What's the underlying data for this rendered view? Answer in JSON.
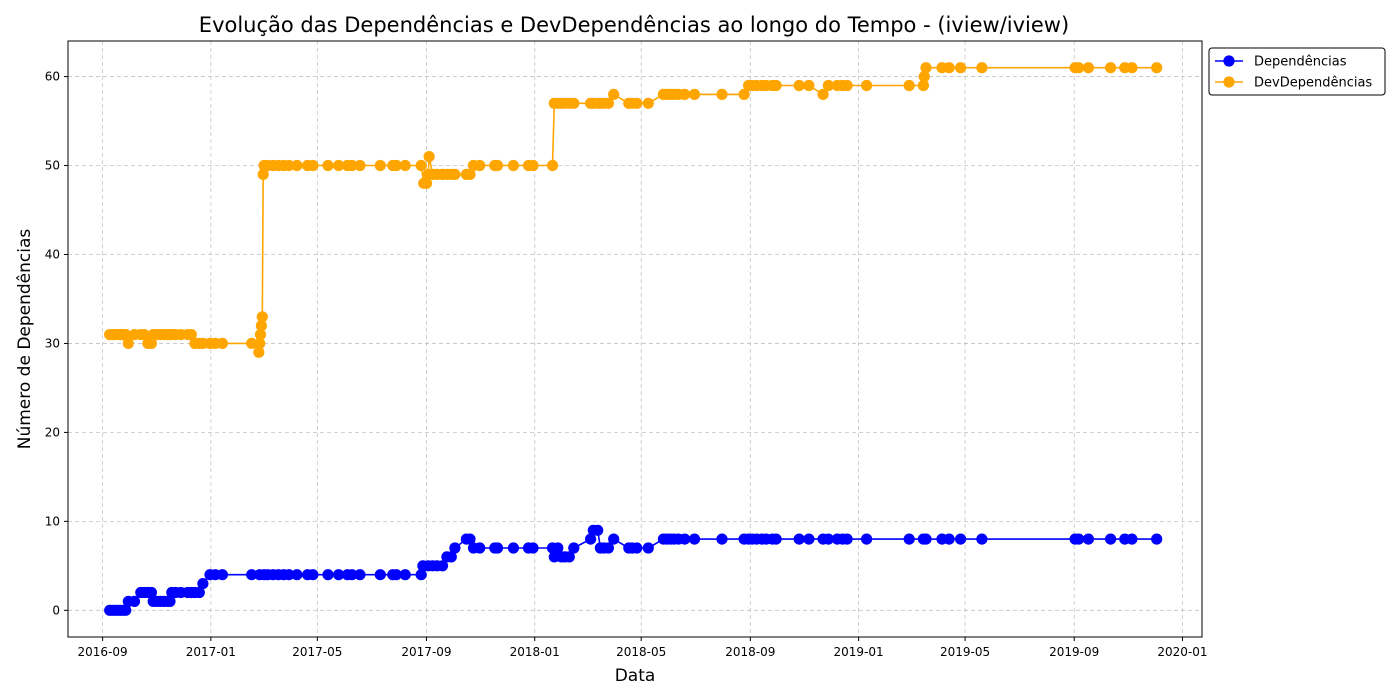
{
  "chart_data": {
    "type": "line",
    "title": "Evolução das Dependências e DevDependências ao longo do Tempo - (iview/iview)",
    "xlabel": "Data",
    "ylabel": "Número de Dependências",
    "x_ticks": [
      "2016-09",
      "2017-01",
      "2017-05",
      "2017-09",
      "2018-01",
      "2018-05",
      "2018-09",
      "2019-01",
      "2019-05",
      "2019-09",
      "2020-01"
    ],
    "y_ticks": [
      "0",
      "10",
      "20",
      "30",
      "40",
      "50",
      "60"
    ],
    "xlim": [
      "2016-07-24",
      "2020-01-23"
    ],
    "ylim": [
      -3,
      64
    ],
    "grid": true,
    "legend": "top-right, outside plot area",
    "marker": "circle",
    "series": [
      {
        "name": "Dependências",
        "color": "#0000ff",
        "points": [
          [
            "2016-09-09",
            0
          ],
          [
            "2016-09-12",
            0
          ],
          [
            "2016-09-15",
            0
          ],
          [
            "2016-09-18",
            0
          ],
          [
            "2016-09-21",
            0
          ],
          [
            "2016-09-24",
            0
          ],
          [
            "2016-09-27",
            0
          ],
          [
            "2016-09-30",
            1
          ],
          [
            "2016-10-07",
            1
          ],
          [
            "2016-10-14",
            2
          ],
          [
            "2016-10-18",
            2
          ],
          [
            "2016-10-22",
            2
          ],
          [
            "2016-10-26",
            2
          ],
          [
            "2016-10-28",
            1
          ],
          [
            "2016-11-01",
            1
          ],
          [
            "2016-11-05",
            1
          ],
          [
            "2016-11-09",
            1
          ],
          [
            "2016-11-13",
            1
          ],
          [
            "2016-11-16",
            1
          ],
          [
            "2016-11-18",
            2
          ],
          [
            "2016-11-22",
            2
          ],
          [
            "2016-11-28",
            2
          ],
          [
            "2016-12-06",
            2
          ],
          [
            "2016-12-10",
            2
          ],
          [
            "2016-12-14",
            2
          ],
          [
            "2016-12-19",
            2
          ],
          [
            "2016-12-23",
            3
          ],
          [
            "2016-12-31",
            4
          ],
          [
            "2017-01-06",
            4
          ],
          [
            "2017-01-14",
            4
          ],
          [
            "2017-02-16",
            4
          ],
          [
            "2017-02-25",
            4
          ],
          [
            "2017-03-02",
            4
          ],
          [
            "2017-03-06",
            4
          ],
          [
            "2017-03-12",
            4
          ],
          [
            "2017-03-18",
            4
          ],
          [
            "2017-03-24",
            4
          ],
          [
            "2017-03-30",
            4
          ],
          [
            "2017-04-08",
            4
          ],
          [
            "2017-04-20",
            4
          ],
          [
            "2017-04-26",
            4
          ],
          [
            "2017-05-13",
            4
          ],
          [
            "2017-05-25",
            4
          ],
          [
            "2017-06-04",
            4
          ],
          [
            "2017-06-09",
            4
          ],
          [
            "2017-06-18",
            4
          ],
          [
            "2017-07-11",
            4
          ],
          [
            "2017-07-25",
            4
          ],
          [
            "2017-07-29",
            4
          ],
          [
            "2017-08-08",
            4
          ],
          [
            "2017-08-26",
            4
          ],
          [
            "2017-08-28",
            5
          ],
          [
            "2017-09-03",
            5
          ],
          [
            "2017-09-08",
            5
          ],
          [
            "2017-09-13",
            5
          ],
          [
            "2017-09-19",
            5
          ],
          [
            "2017-09-24",
            6
          ],
          [
            "2017-09-29",
            6
          ],
          [
            "2017-10-03",
            7
          ],
          [
            "2017-10-16",
            8
          ],
          [
            "2017-10-20",
            8
          ],
          [
            "2017-10-24",
            7
          ],
          [
            "2017-10-31",
            7
          ],
          [
            "2017-11-17",
            7
          ],
          [
            "2017-11-20",
            7
          ],
          [
            "2017-12-08",
            7
          ],
          [
            "2017-12-25",
            7
          ],
          [
            "2017-12-30",
            7
          ],
          [
            "2018-01-21",
            7
          ],
          [
            "2018-01-23",
            6
          ],
          [
            "2018-01-27",
            7
          ],
          [
            "2018-01-31",
            6
          ],
          [
            "2018-02-04",
            6
          ],
          [
            "2018-02-09",
            6
          ],
          [
            "2018-02-14",
            7
          ],
          [
            "2018-03-05",
            8
          ],
          [
            "2018-03-08",
            9
          ],
          [
            "2018-03-13",
            9
          ],
          [
            "2018-03-16",
            7
          ],
          [
            "2018-03-20",
            7
          ],
          [
            "2018-03-25",
            7
          ],
          [
            "2018-03-31",
            8
          ],
          [
            "2018-04-17",
            7
          ],
          [
            "2018-04-21",
            7
          ],
          [
            "2018-04-26",
            7
          ],
          [
            "2018-05-09",
            7
          ],
          [
            "2018-05-26",
            8
          ],
          [
            "2018-05-30",
            8
          ],
          [
            "2018-06-03",
            8
          ],
          [
            "2018-06-07",
            8
          ],
          [
            "2018-06-12",
            8
          ],
          [
            "2018-06-19",
            8
          ],
          [
            "2018-06-30",
            8
          ],
          [
            "2018-07-31",
            8
          ],
          [
            "2018-08-25",
            8
          ],
          [
            "2018-08-30",
            8
          ],
          [
            "2018-09-03",
            8
          ],
          [
            "2018-09-08",
            8
          ],
          [
            "2018-09-14",
            8
          ],
          [
            "2018-09-19",
            8
          ],
          [
            "2018-09-26",
            8
          ],
          [
            "2018-09-30",
            8
          ],
          [
            "2018-10-26",
            8
          ],
          [
            "2018-11-06",
            8
          ],
          [
            "2018-11-22",
            8
          ],
          [
            "2018-11-28",
            8
          ],
          [
            "2018-12-08",
            8
          ],
          [
            "2018-12-14",
            8
          ],
          [
            "2018-12-19",
            8
          ],
          [
            "2019-01-10",
            8
          ],
          [
            "2019-02-27",
            8
          ],
          [
            "2019-03-15",
            8
          ],
          [
            "2019-03-18",
            8
          ],
          [
            "2019-04-05",
            8
          ],
          [
            "2019-04-13",
            8
          ],
          [
            "2019-04-26",
            8
          ],
          [
            "2019-05-20",
            8
          ],
          [
            "2019-09-02",
            8
          ],
          [
            "2019-09-06",
            8
          ],
          [
            "2019-09-17",
            8
          ],
          [
            "2019-10-12",
            8
          ],
          [
            "2019-10-28",
            8
          ],
          [
            "2019-11-05",
            8
          ],
          [
            "2019-12-03",
            8
          ]
        ]
      },
      {
        "name": "DevDependências",
        "color": "#ffa500",
        "points": [
          [
            "2016-09-09",
            31
          ],
          [
            "2016-09-12",
            31
          ],
          [
            "2016-09-15",
            31
          ],
          [
            "2016-09-18",
            31
          ],
          [
            "2016-09-21",
            31
          ],
          [
            "2016-09-24",
            31
          ],
          [
            "2016-09-27",
            31
          ],
          [
            "2016-09-30",
            30
          ],
          [
            "2016-10-07",
            31
          ],
          [
            "2016-10-14",
            31
          ],
          [
            "2016-10-18",
            31
          ],
          [
            "2016-10-22",
            30
          ],
          [
            "2016-10-26",
            30
          ],
          [
            "2016-10-28",
            31
          ],
          [
            "2016-11-01",
            31
          ],
          [
            "2016-11-05",
            31
          ],
          [
            "2016-11-09",
            31
          ],
          [
            "2016-11-13",
            31
          ],
          [
            "2016-11-16",
            31
          ],
          [
            "2016-11-18",
            31
          ],
          [
            "2016-11-22",
            31
          ],
          [
            "2016-11-28",
            31
          ],
          [
            "2016-12-06",
            31
          ],
          [
            "2016-12-10",
            31
          ],
          [
            "2016-12-14",
            30
          ],
          [
            "2016-12-19",
            30
          ],
          [
            "2016-12-23",
            30
          ],
          [
            "2016-12-31",
            30
          ],
          [
            "2017-01-06",
            30
          ],
          [
            "2017-01-14",
            30
          ],
          [
            "2017-02-16",
            30
          ],
          [
            "2017-02-24",
            29
          ],
          [
            "2017-02-25",
            30
          ],
          [
            "2017-02-26",
            31
          ],
          [
            "2017-02-27",
            32
          ],
          [
            "2017-02-28",
            33
          ],
          [
            "2017-03-01",
            49
          ],
          [
            "2017-03-02",
            50
          ],
          [
            "2017-03-06",
            50
          ],
          [
            "2017-03-12",
            50
          ],
          [
            "2017-03-18",
            50
          ],
          [
            "2017-03-24",
            50
          ],
          [
            "2017-03-30",
            50
          ],
          [
            "2017-04-08",
            50
          ],
          [
            "2017-04-20",
            50
          ],
          [
            "2017-04-26",
            50
          ],
          [
            "2017-05-13",
            50
          ],
          [
            "2017-05-25",
            50
          ],
          [
            "2017-06-04",
            50
          ],
          [
            "2017-06-09",
            50
          ],
          [
            "2017-06-18",
            50
          ],
          [
            "2017-07-11",
            50
          ],
          [
            "2017-07-25",
            50
          ],
          [
            "2017-07-29",
            50
          ],
          [
            "2017-08-08",
            50
          ],
          [
            "2017-08-26",
            50
          ],
          [
            "2017-08-29",
            48
          ],
          [
            "2017-09-01",
            48
          ],
          [
            "2017-09-03",
            49
          ],
          [
            "2017-09-04",
            51
          ],
          [
            "2017-09-08",
            49
          ],
          [
            "2017-09-13",
            49
          ],
          [
            "2017-09-19",
            49
          ],
          [
            "2017-09-24",
            49
          ],
          [
            "2017-09-29",
            49
          ],
          [
            "2017-10-03",
            49
          ],
          [
            "2017-10-16",
            49
          ],
          [
            "2017-10-20",
            49
          ],
          [
            "2017-10-24",
            50
          ],
          [
            "2017-10-31",
            50
          ],
          [
            "2017-11-17",
            50
          ],
          [
            "2017-11-20",
            50
          ],
          [
            "2017-12-08",
            50
          ],
          [
            "2017-12-25",
            50
          ],
          [
            "2017-12-30",
            50
          ],
          [
            "2018-01-21",
            50
          ],
          [
            "2018-01-23",
            57
          ],
          [
            "2018-01-27",
            57
          ],
          [
            "2018-01-31",
            57
          ],
          [
            "2018-02-04",
            57
          ],
          [
            "2018-02-09",
            57
          ],
          [
            "2018-02-14",
            57
          ],
          [
            "2018-03-05",
            57
          ],
          [
            "2018-03-08",
            57
          ],
          [
            "2018-03-13",
            57
          ],
          [
            "2018-03-16",
            57
          ],
          [
            "2018-03-20",
            57
          ],
          [
            "2018-03-25",
            57
          ],
          [
            "2018-03-31",
            58
          ],
          [
            "2018-04-17",
            57
          ],
          [
            "2018-04-21",
            57
          ],
          [
            "2018-04-26",
            57
          ],
          [
            "2018-05-09",
            57
          ],
          [
            "2018-05-26",
            58
          ],
          [
            "2018-05-30",
            58
          ],
          [
            "2018-06-03",
            58
          ],
          [
            "2018-06-07",
            58
          ],
          [
            "2018-06-12",
            58
          ],
          [
            "2018-06-19",
            58
          ],
          [
            "2018-06-30",
            58
          ],
          [
            "2018-07-31",
            58
          ],
          [
            "2018-08-25",
            58
          ],
          [
            "2018-08-30",
            59
          ],
          [
            "2018-09-03",
            59
          ],
          [
            "2018-09-08",
            59
          ],
          [
            "2018-09-14",
            59
          ],
          [
            "2018-09-19",
            59
          ],
          [
            "2018-09-26",
            59
          ],
          [
            "2018-09-30",
            59
          ],
          [
            "2018-10-26",
            59
          ],
          [
            "2018-11-06",
            59
          ],
          [
            "2018-11-22",
            58
          ],
          [
            "2018-11-28",
            59
          ],
          [
            "2018-12-08",
            59
          ],
          [
            "2018-12-14",
            59
          ],
          [
            "2018-12-19",
            59
          ],
          [
            "2019-01-10",
            59
          ],
          [
            "2019-02-27",
            59
          ],
          [
            "2019-03-15",
            59
          ],
          [
            "2019-03-16",
            60
          ],
          [
            "2019-03-18",
            61
          ],
          [
            "2019-04-05",
            61
          ],
          [
            "2019-04-13",
            61
          ],
          [
            "2019-04-26",
            61
          ],
          [
            "2019-05-20",
            61
          ],
          [
            "2019-09-02",
            61
          ],
          [
            "2019-09-06",
            61
          ],
          [
            "2019-09-17",
            61
          ],
          [
            "2019-10-12",
            61
          ],
          [
            "2019-10-28",
            61
          ],
          [
            "2019-11-05",
            61
          ],
          [
            "2019-12-03",
            61
          ]
        ]
      }
    ]
  }
}
